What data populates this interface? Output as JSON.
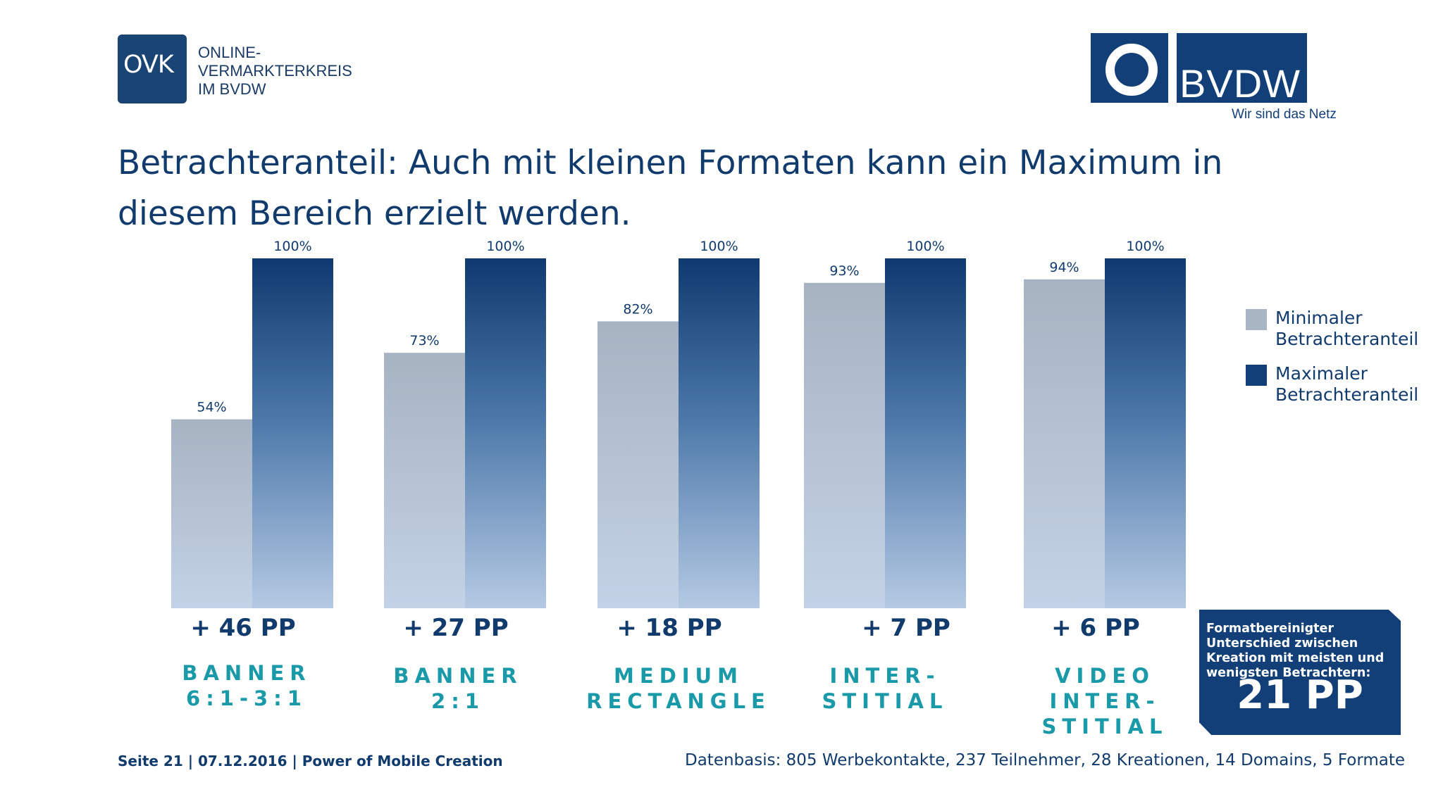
{
  "logos": {
    "ovk": {
      "mark": "OVK",
      "lines": [
        "ONLINE-",
        "VERMARKTERKREIS",
        "IM BVDW"
      ]
    },
    "bvdw": {
      "name": "BVDW",
      "tagline": "Wir sind das Netz"
    }
  },
  "title": "Betrachteranteil: Auch mit kleinen Formaten kann ein Maximum in diesem Bereich erzielt werden.",
  "colors": {
    "min_bar": "#a9b5c3",
    "max_bar": "#123f78",
    "accent_teal": "#1a9aa8",
    "text": "#123b6d"
  },
  "legend": {
    "items": [
      {
        "label_line1": "Minimaler",
        "label_line2": "Betrachteranteil",
        "color": "#a9b5c3"
      },
      {
        "label_line1": "Maximaler",
        "label_line2": "Betrachteranteil",
        "color": "#123f78"
      }
    ],
    "placement": "right"
  },
  "chart_data": {
    "type": "bar",
    "categories": [
      "BANNER 6:1-3:1",
      "BANNER 2:1",
      "MEDIUM RECTANGLE",
      "INTER-STITIAL",
      "VIDEO INTER-STITIAL"
    ],
    "category_lines": [
      [
        "BANNER",
        "6:1-3:1"
      ],
      [
        "BANNER",
        "2:1"
      ],
      [
        "MEDIUM",
        "RECTANGLE"
      ],
      [
        "INTER-",
        "STITIAL"
      ],
      [
        "VIDEO",
        "INTER-",
        "STITIAL"
      ]
    ],
    "series": [
      {
        "name": "Minimaler Betrachteranteil",
        "values": [
          54,
          73,
          82,
          93,
          94
        ],
        "labels": [
          "54%",
          "73%",
          "82%",
          "93%",
          "94%"
        ]
      },
      {
        "name": "Maximaler Betrachteranteil",
        "values": [
          100,
          100,
          100,
          100,
          100
        ],
        "labels": [
          "100%",
          "100%",
          "100%",
          "100%",
          "100%"
        ]
      }
    ],
    "differences": [
      "+ 46 PP",
      "+ 27 PP",
      "+ 18 PP",
      "+ 7 PP",
      "+ 6 PP"
    ],
    "ylim": [
      0,
      100
    ],
    "grid": false
  },
  "summary": {
    "text": "Formatbereinigter Unterschied zwischen Kreation mit meisten und wenigsten Betrachtern:",
    "value": "21 PP"
  },
  "footer": {
    "left": "Seite 21 | 07.12.2016 | Power of Mobile Creation",
    "right": "Datenbasis: 805 Werbekontakte, 237 Teilnehmer, 28 Kreationen, 14 Domains, 5 Formate"
  }
}
